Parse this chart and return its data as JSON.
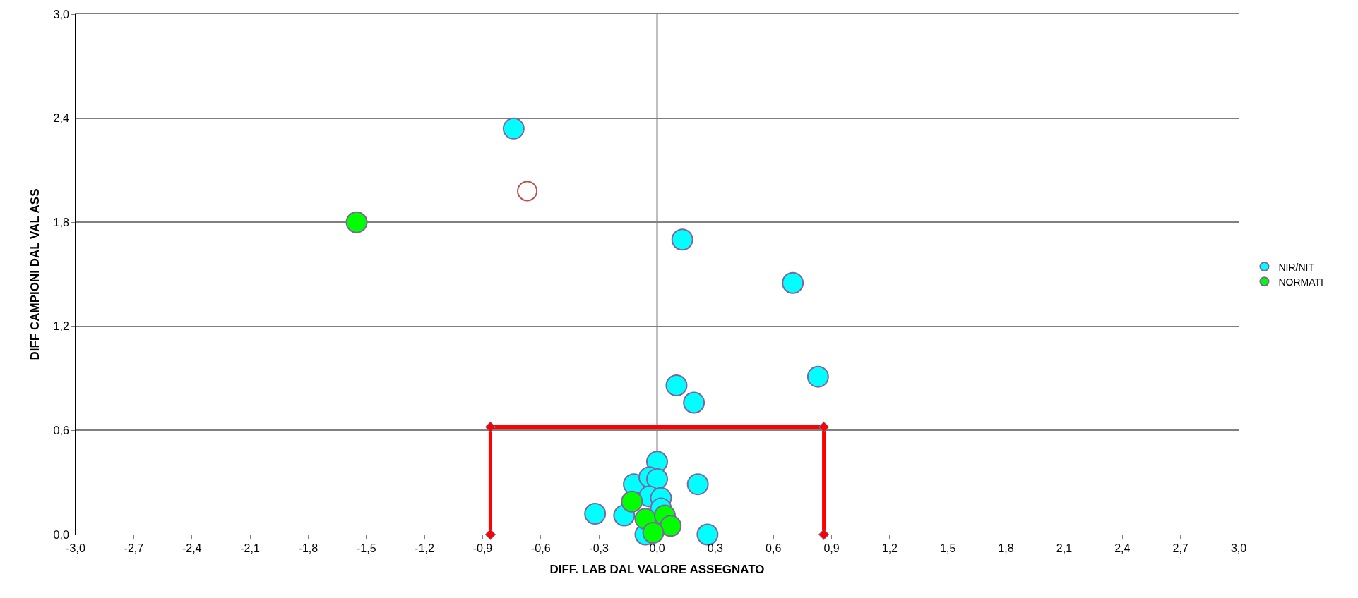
{
  "chart_data": {
    "type": "scatter",
    "xlabel": "DIFF. LAB DAL VALORE ASSEGNATO",
    "ylabel": "DIFF CAMPIONI DAL VAL ASS",
    "xlim": [
      -3.0,
      3.0
    ],
    "xticks": [
      {
        "value": -3.0,
        "label": "-3,0"
      },
      {
        "value": -2.7,
        "label": "-2,7"
      },
      {
        "value": -2.4,
        "label": "-2,4"
      },
      {
        "value": -2.1,
        "label": "-2,1"
      },
      {
        "value": -1.8,
        "label": "-1,8"
      },
      {
        "value": -1.5,
        "label": "-1,5"
      },
      {
        "value": -1.2,
        "label": "-1,2"
      },
      {
        "value": -0.9,
        "label": "-0,9"
      },
      {
        "value": -0.6,
        "label": "-0,6"
      },
      {
        "value": -0.3,
        "label": "-0,3"
      },
      {
        "value": 0.0,
        "label": "0,0"
      },
      {
        "value": 0.3,
        "label": "0,3"
      },
      {
        "value": 0.6,
        "label": "0,6"
      },
      {
        "value": 0.9,
        "label": "0,9"
      },
      {
        "value": 1.2,
        "label": "1,2"
      },
      {
        "value": 1.5,
        "label": "1,5"
      },
      {
        "value": 1.8,
        "label": "1,8"
      },
      {
        "value": 2.1,
        "label": "2,1"
      },
      {
        "value": 2.4,
        "label": "2,4"
      },
      {
        "value": 2.7,
        "label": "2,7"
      },
      {
        "value": 3.0,
        "label": "3,0"
      }
    ],
    "ylim": [
      0.0,
      3.0
    ],
    "yticks": [
      {
        "value": 0.0,
        "label": "0,0"
      },
      {
        "value": 0.6,
        "label": "0,6"
      },
      {
        "value": 1.2,
        "label": "1,2"
      },
      {
        "value": 1.8,
        "label": "1,8"
      },
      {
        "value": 2.4,
        "label": "2,4"
      },
      {
        "value": 3.0,
        "label": "3,0"
      }
    ],
    "grid": "y",
    "legend": "right",
    "marker": "circle",
    "ref_lines": [
      {
        "axis": "x",
        "value": 0.0,
        "color": "#000000"
      }
    ],
    "series": [
      {
        "name": "NIR/NIT",
        "color": "#00ffff",
        "x": [
          -0.74,
          0.13,
          0.7,
          0.83,
          0.1,
          0.19,
          0.0,
          -0.32,
          -0.17,
          0.21,
          0.26,
          -0.06,
          -0.12,
          -0.04,
          0.0,
          -0.04,
          0.02,
          0.02
        ],
        "values": [
          2.34,
          1.7,
          1.45,
          0.91,
          0.86,
          0.76,
          0.42,
          0.12,
          0.11,
          0.29,
          0.0,
          0.0,
          0.29,
          0.33,
          0.32,
          0.22,
          0.21,
          0.15
        ]
      },
      {
        "name": "NORMATI",
        "color": "#00ff00",
        "x": [
          -1.55,
          -0.13,
          -0.06,
          0.04,
          0.07,
          -0.02
        ],
        "values": [
          1.8,
          0.19,
          0.09,
          0.11,
          0.05,
          0.01
        ]
      },
      {
        "color": "#c0504d",
        "marker": "circle-open",
        "x": [
          -0.67
        ],
        "values": [
          1.98
        ]
      },
      {
        "type": "line",
        "color": "#ff0000",
        "marker": "diamond",
        "x": [
          -0.86,
          -0.86,
          0.86,
          0.86
        ],
        "values": [
          0.0,
          0.62,
          0.62,
          0.0
        ]
      }
    ]
  }
}
